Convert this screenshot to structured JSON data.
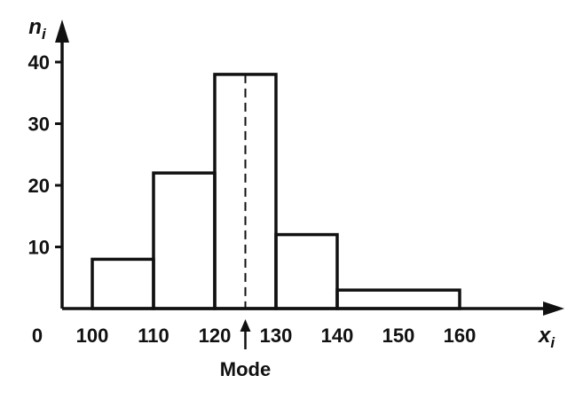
{
  "chart_data": {
    "type": "bar",
    "title": "",
    "xlabel": "x",
    "xlabel_sub": "i",
    "ylabel": "n",
    "ylabel_sub": "i",
    "origin_label": "0",
    "bins": [
      {
        "from": 100,
        "to": 110,
        "value": 8
      },
      {
        "from": 110,
        "to": 120,
        "value": 22
      },
      {
        "from": 120,
        "to": 130,
        "value": 38
      },
      {
        "from": 130,
        "to": 140,
        "value": 12
      },
      {
        "from": 140,
        "to": 160,
        "value": 3
      }
    ],
    "x_ticks": [
      "100",
      "110",
      "120",
      "130",
      "140",
      "150",
      "160"
    ],
    "y_ticks": [
      "10",
      "20",
      "30",
      "40"
    ],
    "xlim": [
      95,
      175
    ],
    "ylim": [
      0,
      44
    ],
    "grid": false,
    "mode": {
      "label": "Mode",
      "x": 125
    }
  },
  "colors": {
    "ink": "#111111",
    "background": "#ffffff"
  }
}
